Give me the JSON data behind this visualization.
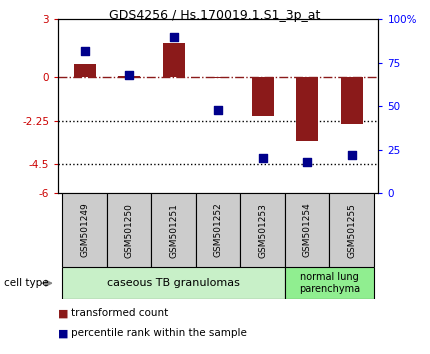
{
  "title": "GDS4256 / Hs.170019.1.S1_3p_at",
  "samples": [
    "GSM501249",
    "GSM501250",
    "GSM501251",
    "GSM501252",
    "GSM501253",
    "GSM501254",
    "GSM501255"
  ],
  "transformed_count": [
    0.7,
    0.05,
    1.8,
    -0.05,
    -2.0,
    -3.3,
    -2.4
  ],
  "percentile_rank": [
    82,
    68,
    90,
    48,
    20,
    18,
    22
  ],
  "ylim_left": [
    -6,
    3
  ],
  "yticks_left": [
    -6,
    -4.5,
    -2.25,
    0,
    3
  ],
  "ytick_labels_left": [
    "-6",
    "-4.5",
    "-2.25",
    "0",
    "3"
  ],
  "ylim_right": [
    0,
    100
  ],
  "yticks_right": [
    0,
    25,
    50,
    75,
    100
  ],
  "ytick_labels_right": [
    "0",
    "25",
    "50",
    "75",
    "100%"
  ],
  "hline_y": 0,
  "dotted_lines": [
    -2.25,
    -4.5
  ],
  "bar_color": "#8B1A1A",
  "scatter_color": "#00008B",
  "bar_width": 0.5,
  "scatter_size": 40,
  "cell_type_groups": [
    {
      "label": "caseous TB granulomas",
      "start": 0,
      "end": 4,
      "color": "#c8f0c8"
    },
    {
      "label": "normal lung\nparenchyma",
      "start": 5,
      "end": 6,
      "color": "#90ee90"
    }
  ],
  "cell_type_label": "cell type",
  "legend_bar_label": "transformed count",
  "legend_scatter_label": "percentile rank within the sample",
  "n_samples": 7,
  "label_box_color": "#cccccc"
}
